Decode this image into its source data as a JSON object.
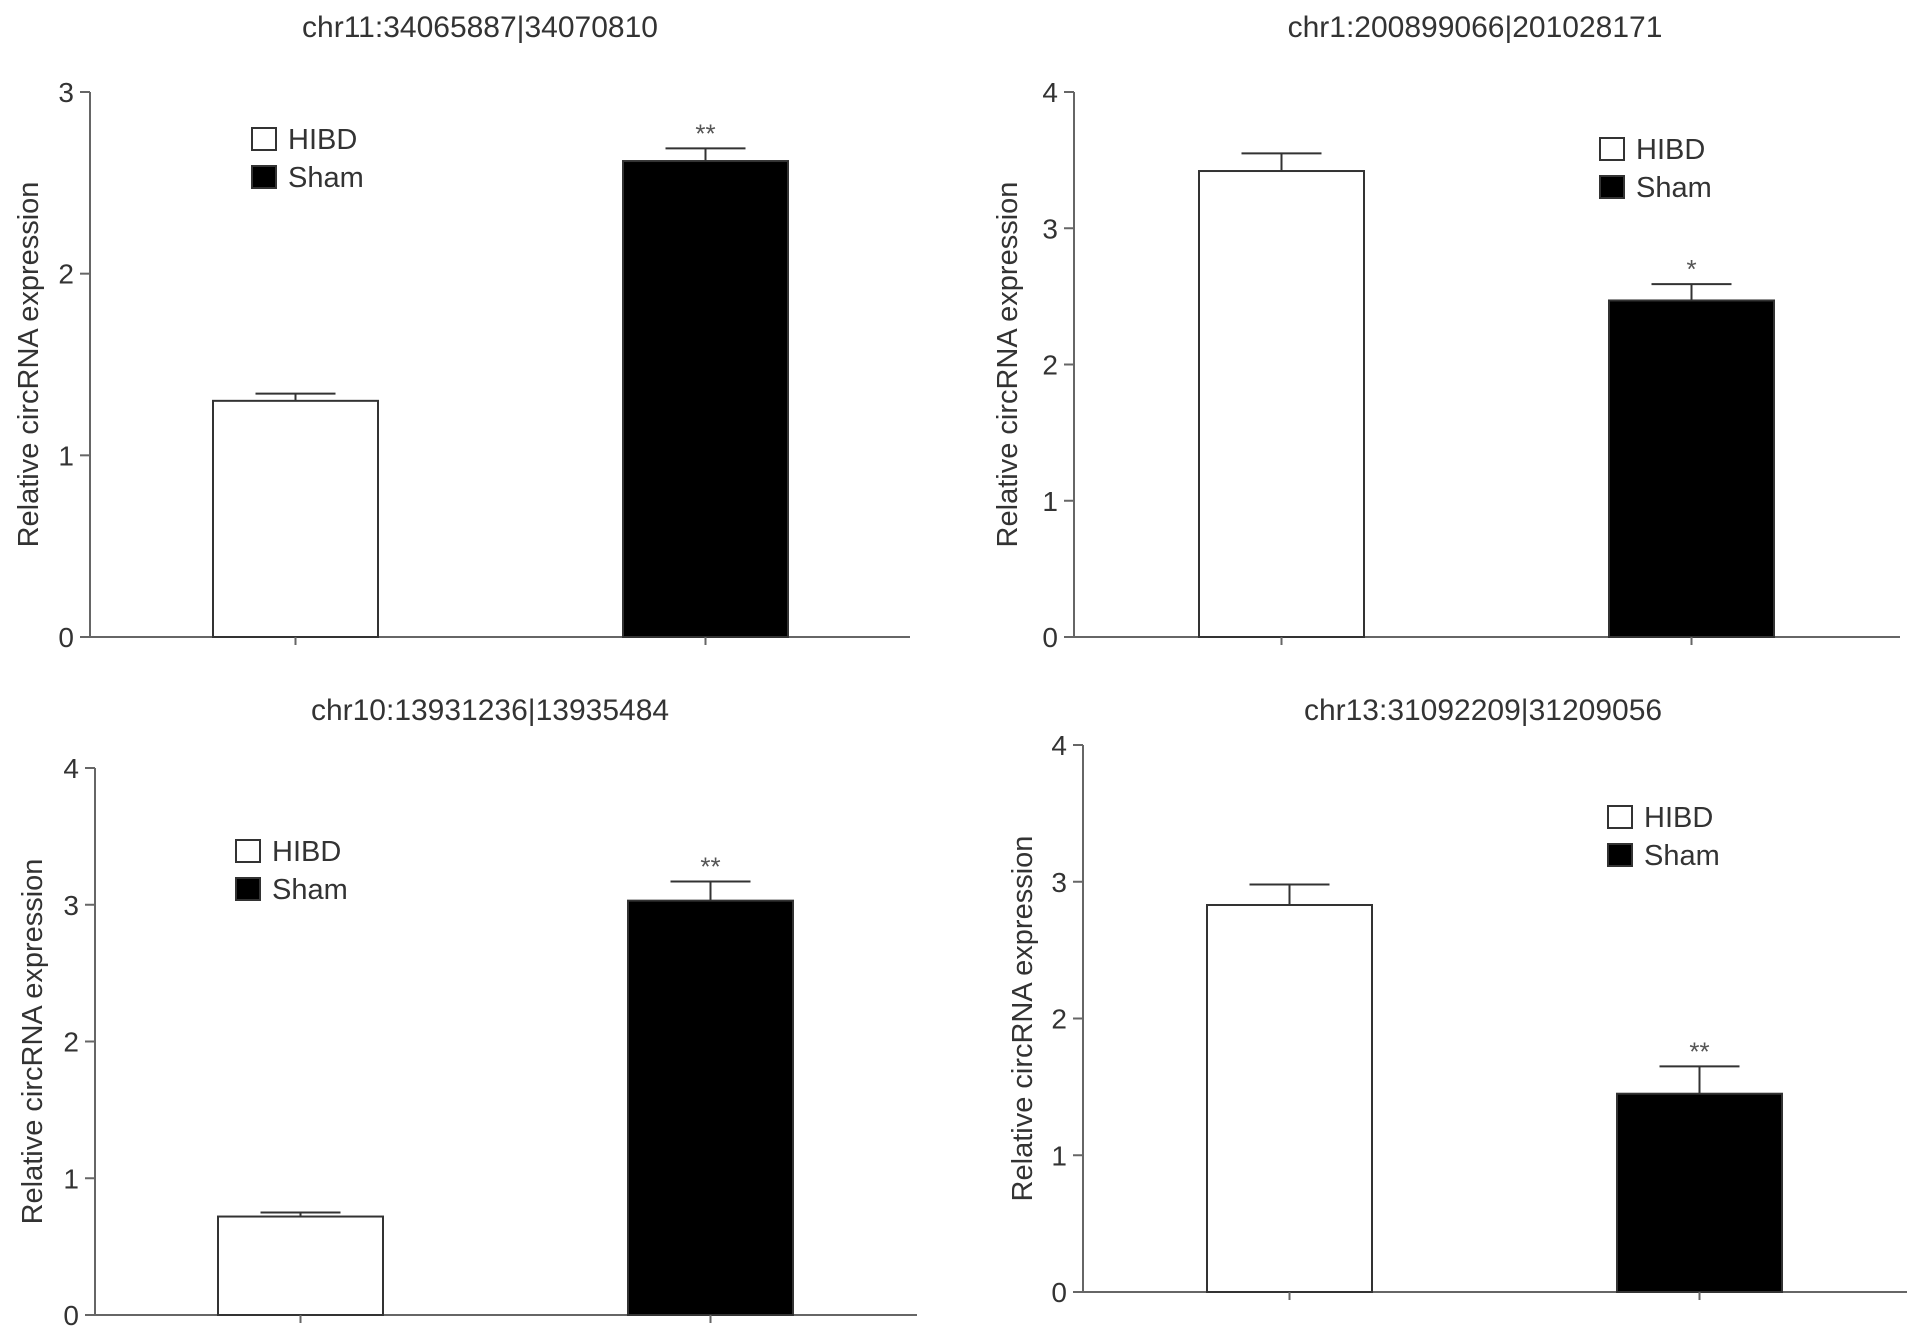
{
  "chart_data": [
    {
      "type": "bar",
      "title": "chr11:34065887|34070810",
      "ylabel": "Relative circRNA expression",
      "xlabel": "",
      "ylim": [
        0,
        3
      ],
      "yticks": [
        "0",
        "1",
        "2",
        "3"
      ],
      "categories": [
        "HIBD",
        "Sham"
      ],
      "values": [
        1.3,
        2.62
      ],
      "errors": [
        0.04,
        0.07
      ],
      "significance": [
        "",
        "**"
      ],
      "colors": [
        "#ffffff",
        "#000000"
      ],
      "legend": {
        "placement": "top-left",
        "entries": [
          "HIBD",
          "Sham"
        ]
      },
      "grid": false
    },
    {
      "type": "bar",
      "title": "chr1:200899066|201028171",
      "ylabel": "Relative circRNA expression",
      "xlabel": "",
      "ylim": [
        0,
        4
      ],
      "yticks": [
        "0",
        "1",
        "2",
        "3",
        "4"
      ],
      "categories": [
        "HIBD",
        "Sham"
      ],
      "values": [
        3.42,
        2.47
      ],
      "errors": [
        0.13,
        0.12
      ],
      "significance": [
        "",
        "*"
      ],
      "colors": [
        "#ffffff",
        "#000000"
      ],
      "legend": {
        "placement": "top-right",
        "entries": [
          "HIBD",
          "Sham"
        ]
      },
      "grid": false
    },
    {
      "type": "bar",
      "title": "chr10:13931236|13935484",
      "ylabel": "Relative circRNA expression",
      "xlabel": "",
      "ylim": [
        0,
        4
      ],
      "yticks": [
        "0",
        "1",
        "2",
        "3",
        "4"
      ],
      "categories": [
        "HIBD",
        "Sham"
      ],
      "values": [
        0.72,
        3.03
      ],
      "errors": [
        0.03,
        0.14
      ],
      "significance": [
        "",
        "**"
      ],
      "colors": [
        "#ffffff",
        "#000000"
      ],
      "legend": {
        "placement": "top-left",
        "entries": [
          "HIBD",
          "Sham"
        ]
      },
      "grid": false
    },
    {
      "type": "bar",
      "title": "chr13:31092209|31209056",
      "ylabel": "Relative circRNA expression",
      "xlabel": "",
      "ylim": [
        0,
        4
      ],
      "yticks": [
        "0",
        "1",
        "2",
        "3",
        "4"
      ],
      "categories": [
        "HIBD",
        "Sham"
      ],
      "values": [
        2.83,
        1.45
      ],
      "errors": [
        0.15,
        0.2
      ],
      "significance": [
        "",
        "**"
      ],
      "colors": [
        "#ffffff",
        "#000000"
      ],
      "legend": {
        "placement": "top-right",
        "entries": [
          "HIBD",
          "Sham"
        ]
      },
      "grid": false
    }
  ]
}
